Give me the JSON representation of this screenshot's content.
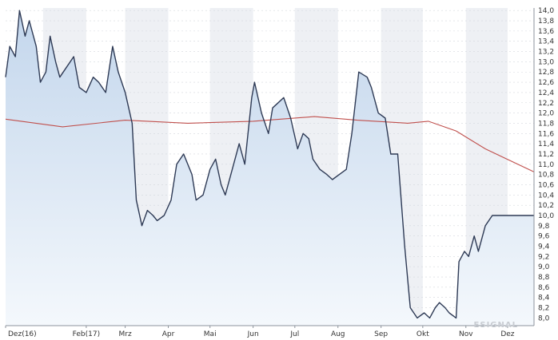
{
  "chart_data": {
    "type": "area",
    "title": "",
    "xlabel": "",
    "ylabel": "",
    "ylim": [
      7.85,
      14.05
    ],
    "y_ticks": [
      "14,0",
      "13,8",
      "13,6",
      "13,4",
      "13,2",
      "13,0",
      "12,8",
      "12,6",
      "12,4",
      "12,2",
      "12,0",
      "11,8",
      "11,6",
      "11,4",
      "11,2",
      "11,0",
      "10,8",
      "10,6",
      "10,4",
      "10,2",
      "10,0",
      "9,8",
      "9,6",
      "9,4",
      "9,2",
      "9,0",
      "8,8",
      "8,6",
      "8,4",
      "8,2",
      "8,0"
    ],
    "x_ticks": [
      "Dez(16)",
      "Feb(17)",
      "Mrz",
      "Apr",
      "Mai",
      "Jun",
      "Jul",
      "Aug",
      "Sep",
      "Okt",
      "Nov",
      "Dez"
    ],
    "grid": true,
    "watermark": "ESIGNAL",
    "colors": {
      "price_line": "#2e3a55",
      "area_top": "#c3d6ec",
      "area_bottom": "#f4f8fc",
      "moving_average": "#c0504d",
      "band": "#eef0f4",
      "grid": "#d4d8de"
    },
    "series": [
      {
        "x": [
          "2016-12-05",
          "2016-12-08",
          "2016-12-12",
          "2016-12-15",
          "2016-12-19",
          "2016-12-22",
          "2016-12-27",
          "2016-12-30",
          "2017-01-03",
          "2017-01-06",
          "2017-01-10",
          "2017-01-13",
          "2017-01-18",
          "2017-01-23",
          "2017-01-27",
          "2017-02-01",
          "2017-02-06",
          "2017-02-10",
          "2017-02-15",
          "2017-02-20",
          "2017-02-24",
          "2017-03-01",
          "2017-03-06",
          "2017-03-09",
          "2017-03-13",
          "2017-03-17",
          "2017-03-21",
          "2017-03-24",
          "2017-03-29",
          "2017-04-03",
          "2017-04-07",
          "2017-04-12",
          "2017-04-18",
          "2017-04-21",
          "2017-04-26",
          "2017-05-01",
          "2017-05-05",
          "2017-05-09",
          "2017-05-12",
          "2017-05-16",
          "2017-05-22",
          "2017-05-26",
          "2017-05-31",
          "2017-06-02",
          "2017-06-07",
          "2017-06-12",
          "2017-06-15",
          "2017-06-19",
          "2017-06-23",
          "2017-06-28",
          "2017-07-03",
          "2017-07-07",
          "2017-07-11",
          "2017-07-14",
          "2017-07-19",
          "2017-07-24",
          "2017-07-28",
          "2017-08-02",
          "2017-08-07",
          "2017-08-11",
          "2017-08-16",
          "2017-08-22",
          "2017-08-25",
          "2017-08-30",
          "2017-09-04",
          "2017-09-08",
          "2017-09-13",
          "2017-09-18",
          "2017-09-22",
          "2017-09-27",
          "2017-10-02",
          "2017-10-06",
          "2017-10-10",
          "2017-10-13",
          "2017-10-17",
          "2017-10-20",
          "2017-10-25",
          "2017-10-27",
          "2017-10-31",
          "2017-11-03",
          "2017-11-07",
          "2017-11-10",
          "2017-11-15",
          "2017-11-20",
          "2017-11-24",
          "2017-11-29",
          "2017-12-04",
          "2017-12-07",
          "2017-12-11",
          "2017-12-13",
          "2017-12-15",
          "2017-12-18",
          "2017-12-20"
        ],
        "values": [
          12.7,
          13.3,
          13.1,
          14.0,
          13.5,
          13.8,
          13.3,
          12.6,
          12.8,
          13.5,
          13.0,
          12.7,
          12.9,
          13.1,
          12.5,
          12.4,
          12.7,
          12.6,
          12.4,
          13.3,
          12.8,
          12.4,
          11.8,
          10.3,
          9.8,
          10.1,
          10.0,
          9.9,
          10.0,
          10.3,
          11.0,
          11.2,
          10.8,
          10.3,
          10.4,
          10.9,
          11.1,
          10.6,
          10.4,
          10.8,
          11.4,
          11.0,
          12.3,
          12.6,
          12.0,
          11.6,
          12.1,
          12.2,
          12.3,
          11.9,
          11.3,
          11.6,
          11.5,
          11.1,
          10.9,
          10.8,
          10.7,
          10.8,
          10.9,
          11.6,
          12.8,
          12.7,
          12.5,
          12.0,
          11.9,
          11.2,
          11.2,
          9.4,
          8.2,
          8.0,
          8.1,
          8.0,
          8.2,
          8.3,
          8.2,
          8.1,
          8.0,
          9.1,
          9.3,
          9.2,
          9.6,
          9.3,
          9.8,
          10.0,
          10.0,
          10.0,
          10.0,
          10.0,
          10.0,
          10.0,
          10.0,
          10.0,
          10.0
        ]
      },
      {
        "x": [
          "2016-12-05",
          "2017-01-15",
          "2017-03-01",
          "2017-04-15",
          "2017-06-01",
          "2017-07-15",
          "2017-08-15",
          "2017-09-20",
          "2017-10-05",
          "2017-10-25",
          "2017-11-15",
          "2017-12-20"
        ],
        "values": [
          11.88,
          11.73,
          11.86,
          11.8,
          11.84,
          11.93,
          11.86,
          11.8,
          11.84,
          11.65,
          11.3,
          10.85
        ]
      }
    ]
  }
}
